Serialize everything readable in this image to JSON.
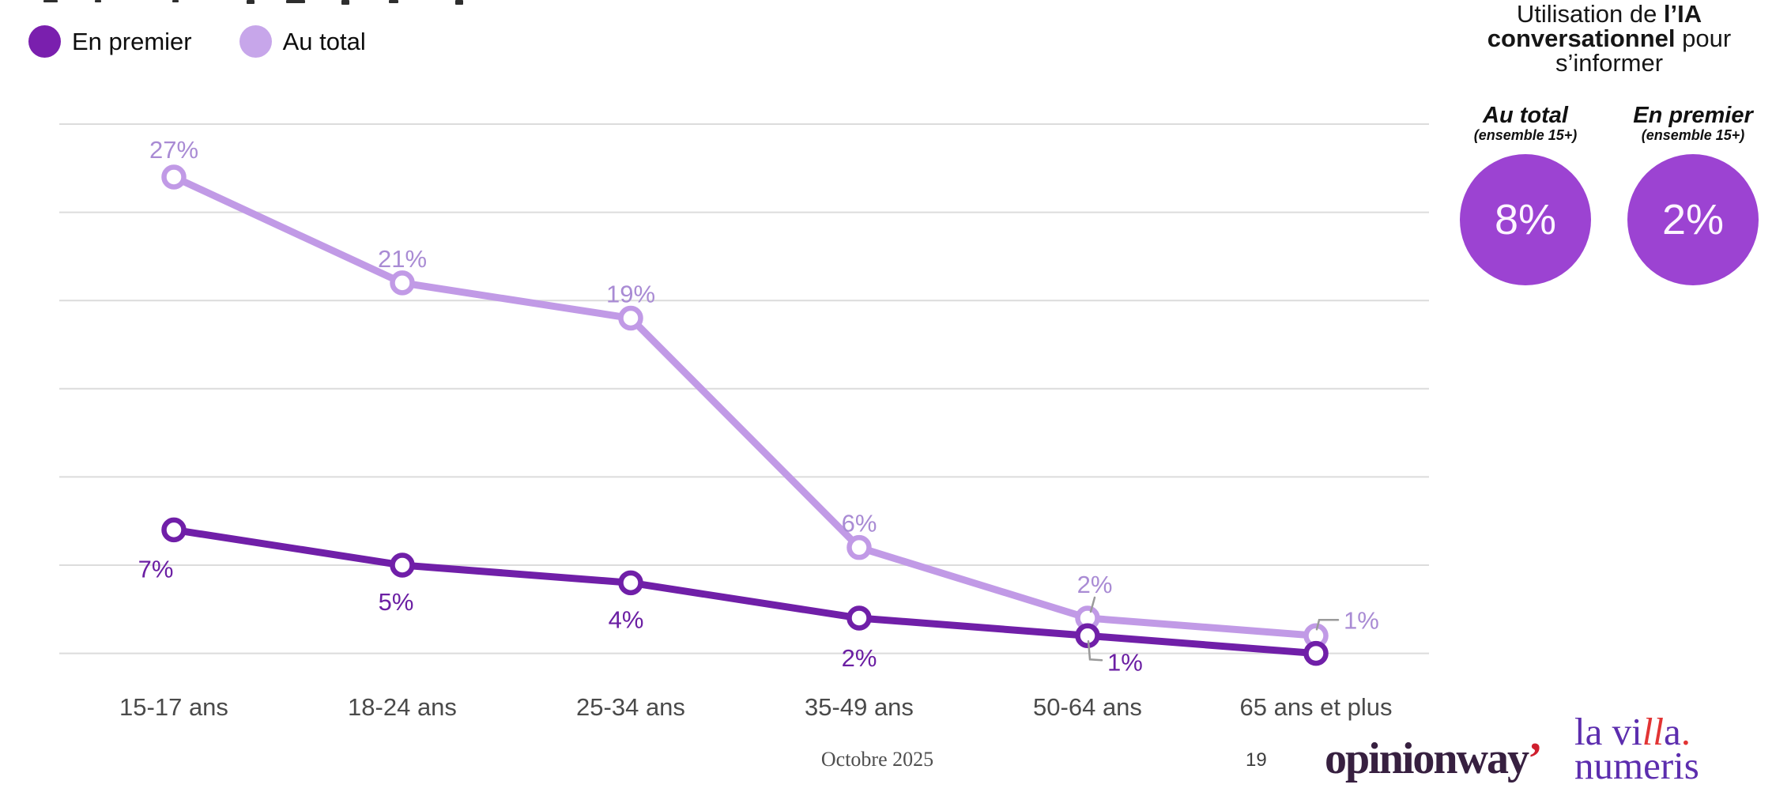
{
  "legend": {
    "items": [
      {
        "label": "En premier",
        "color": "#7a1fae"
      },
      {
        "label": "Au total",
        "color": "#c7a6ea"
      }
    ]
  },
  "chart_data": {
    "type": "line",
    "categories": [
      "15-17 ans",
      "18-24 ans",
      "25-34 ans",
      "35-49 ans",
      "50-64 ans",
      "65 ans et plus"
    ],
    "series": [
      {
        "name": "Au total",
        "color": "#c19ae6",
        "label_color": "#a98bd4",
        "values": [
          27,
          21,
          19,
          6,
          2,
          1
        ],
        "labels": [
          "27%",
          "21%",
          "19%",
          "6%",
          "2%",
          "1%"
        ]
      },
      {
        "name": "En premier",
        "color": "#701fa8",
        "label_color": "#6b1fa3",
        "values": [
          7,
          5,
          4,
          2,
          1,
          0
        ],
        "labels": [
          "7%",
          "5%",
          "4%",
          "2%",
          "1%",
          ""
        ]
      }
    ],
    "ylim": [
      0,
      30
    ],
    "gridline_step": 5,
    "grid": true,
    "legend_position": "top-left",
    "xlabel": "",
    "ylabel": ""
  },
  "side_panel": {
    "title": {
      "lines": [
        {
          "normal": "Utilisation de ",
          "bold": "l’IA"
        },
        {
          "bold": "conversationnel",
          "normal": " pour"
        },
        {
          "normal": "s’informer"
        }
      ]
    },
    "stats": [
      {
        "heading": "Au total",
        "subheading": "(ensemble 15+)",
        "value": "8%"
      },
      {
        "heading": "En premier",
        "subheading": "(ensemble 15+)",
        "value": "2%"
      }
    ],
    "circle_color": "#9c43d2"
  },
  "footer": {
    "date": "Octobre 2025",
    "page_number": "19",
    "logo_opinionway": {
      "text": "opinionway",
      "mark": "’"
    },
    "logo_lavilla": {
      "l1a": "la vi",
      "l1b": "ll",
      "l1c": "a",
      "l1d": ".",
      "line2": "numeris"
    }
  }
}
